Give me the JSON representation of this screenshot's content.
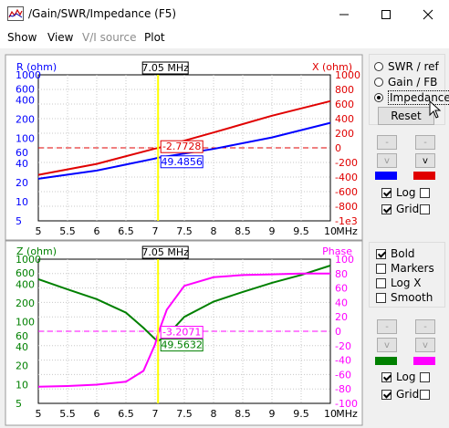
{
  "window": {
    "title": "/Gain/SWR/Impedance (F5)",
    "controls": {
      "minimize": "—",
      "maximize": "☐",
      "close": "✕"
    }
  },
  "menu": [
    {
      "label": "Show",
      "enabled": true
    },
    {
      "label": "View",
      "enabled": true
    },
    {
      "label": "V/I source",
      "enabled": false
    },
    {
      "label": "Plot",
      "enabled": true
    }
  ],
  "colors": {
    "blue": "#0000ff",
    "red": "#e00000",
    "green": "#008000",
    "magenta": "#ff00ff",
    "cursor": "#ffff00"
  },
  "charts": [
    {
      "id": "rx-chart",
      "left_axis_title": "R (ohm)",
      "right_axis_title": "X (ohm)",
      "cursor_label": "7.05 MHz",
      "left_ticks": [
        {
          "v": 1000,
          "t": "1000"
        },
        {
          "v": 600,
          "t": "600"
        },
        {
          "v": 400,
          "t": "400"
        },
        {
          "v": 200,
          "t": "200"
        },
        {
          "v": 100,
          "t": "100"
        },
        {
          "v": 60,
          "t": "60"
        },
        {
          "v": 40,
          "t": "40"
        },
        {
          "v": 20,
          "t": "20"
        },
        {
          "v": 10,
          "t": "10"
        },
        {
          "v": 5,
          "t": "5"
        }
      ],
      "right_ticks": [
        "1000",
        "800",
        "600",
        "400",
        "200",
        "0",
        "-200",
        "-400",
        "-600",
        "-800",
        "-1e3"
      ],
      "x_ticks": [
        "5",
        "5.5",
        "6",
        "6.5",
        "7",
        "7.5",
        "8",
        "8.5",
        "9",
        "9.5",
        "10"
      ],
      "x_unit": "MHz",
      "markers": [
        {
          "text": "-2.7728",
          "color": "#e00000"
        },
        {
          "text": "49.4856",
          "color": "#0000ff"
        }
      ]
    },
    {
      "id": "z-phase-chart",
      "left_axis_title": "Z (ohm)",
      "right_axis_title": "Phase",
      "cursor_label": "7.05 MHz",
      "left_ticks": [
        {
          "v": 1000,
          "t": "1000"
        },
        {
          "v": 600,
          "t": "600"
        },
        {
          "v": 400,
          "t": "400"
        },
        {
          "v": 200,
          "t": "200"
        },
        {
          "v": 100,
          "t": "100"
        },
        {
          "v": 60,
          "t": "60"
        },
        {
          "v": 40,
          "t": "40"
        },
        {
          "v": 20,
          "t": "20"
        },
        {
          "v": 10,
          "t": "10"
        },
        {
          "v": 5,
          "t": "5"
        }
      ],
      "right_ticks": [
        "100",
        "80",
        "60",
        "40",
        "20",
        "0",
        "-20",
        "-40",
        "-60",
        "-80",
        "-100"
      ],
      "x_ticks": [
        "5",
        "5.5",
        "6",
        "6.5",
        "7",
        "7.5",
        "8",
        "8.5",
        "9",
        "9.5",
        "10"
      ],
      "x_unit": "MHz",
      "markers": [
        {
          "text": "-3.2071",
          "color": "#ff00ff"
        },
        {
          "text": "49.5632",
          "color": "#008000"
        }
      ]
    }
  ],
  "chart_data": [
    {
      "type": "line",
      "x_range": [
        5,
        10
      ],
      "y_left": {
        "scale": "log",
        "range": [
          5,
          1000
        ]
      },
      "y_right": {
        "scale": "linear",
        "range": [
          -1000,
          1000
        ]
      },
      "cursor_x": 7.05,
      "grid": true,
      "series": [
        {
          "axis": "left",
          "color": "#0000ff",
          "points": [
            [
              5,
              23
            ],
            [
              6,
              31
            ],
            [
              7,
              48
            ],
            [
              7.05,
              49.4856
            ],
            [
              8,
              68
            ],
            [
              9,
              103
            ],
            [
              10,
              175
            ]
          ]
        },
        {
          "axis": "right",
          "color": "#e00000",
          "points": [
            [
              5,
              -370
            ],
            [
              6,
              -220
            ],
            [
              7,
              -10
            ],
            [
              7.05,
              -2.7728
            ],
            [
              8,
              210
            ],
            [
              9,
              440
            ],
            [
              10,
              640
            ]
          ]
        }
      ]
    },
    {
      "type": "line",
      "x_range": [
        5,
        10
      ],
      "y_left": {
        "scale": "log",
        "range": [
          5,
          1000
        ]
      },
      "y_right": {
        "scale": "linear",
        "range": [
          -100,
          100
        ]
      },
      "cursor_x": 7.05,
      "grid": true,
      "series": [
        {
          "axis": "left",
          "color": "#008000",
          "points": [
            [
              5,
              480
            ],
            [
              5.5,
              330
            ],
            [
              6,
              230
            ],
            [
              6.5,
              140
            ],
            [
              6.8,
              80
            ],
            [
              7,
              53
            ],
            [
              7.05,
              49.5632
            ],
            [
              7.2,
              60
            ],
            [
              7.5,
              120
            ],
            [
              8,
              210
            ],
            [
              8.5,
              300
            ],
            [
              9,
              420
            ],
            [
              9.5,
              560
            ],
            [
              10,
              790
            ]
          ]
        },
        {
          "axis": "right",
          "color": "#ff00ff",
          "points": [
            [
              5,
              -77
            ],
            [
              5.5,
              -76
            ],
            [
              6,
              -74
            ],
            [
              6.5,
              -70
            ],
            [
              6.8,
              -55
            ],
            [
              7,
              -18
            ],
            [
              7.05,
              -3.2071
            ],
            [
              7.2,
              30
            ],
            [
              7.5,
              63
            ],
            [
              8,
              75
            ],
            [
              8.5,
              78
            ],
            [
              9,
              79
            ],
            [
              9.5,
              80
            ],
            [
              10,
              80
            ]
          ]
        }
      ]
    }
  ],
  "panel_top": {
    "radios": [
      {
        "label": "SWR / ref",
        "selected": false
      },
      {
        "label": "Gain / FB",
        "selected": false
      },
      {
        "label": "Impedance",
        "selected": true
      }
    ],
    "reset_label": "Reset",
    "up_label": "-",
    "down_label": "v",
    "checks": [
      {
        "label": "Log",
        "checked": true,
        "extra_checked": false
      },
      {
        "label": "Grid",
        "checked": true,
        "extra_checked": false
      }
    ]
  },
  "panel_bottom": {
    "options": [
      {
        "label": "Bold",
        "checked": true
      },
      {
        "label": "Markers",
        "checked": false
      },
      {
        "label": "Log X",
        "checked": false
      },
      {
        "label": "Smooth",
        "checked": false
      }
    ],
    "up_label": "-",
    "down_label": "v",
    "checks": [
      {
        "label": "Log",
        "checked": true,
        "extra_checked": false
      },
      {
        "label": "Grid",
        "checked": true,
        "extra_checked": false
      }
    ]
  }
}
